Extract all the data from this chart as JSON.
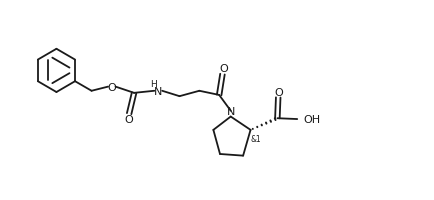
{
  "bg_color": "#ffffff",
  "line_color": "#1a1a1a",
  "font_size": 8.0,
  "line_width": 1.3,
  "figsize": [
    4.35,
    2.01
  ],
  "dpi": 100,
  "xlim": [
    0,
    10.5
  ],
  "ylim": [
    0,
    4.8
  ]
}
